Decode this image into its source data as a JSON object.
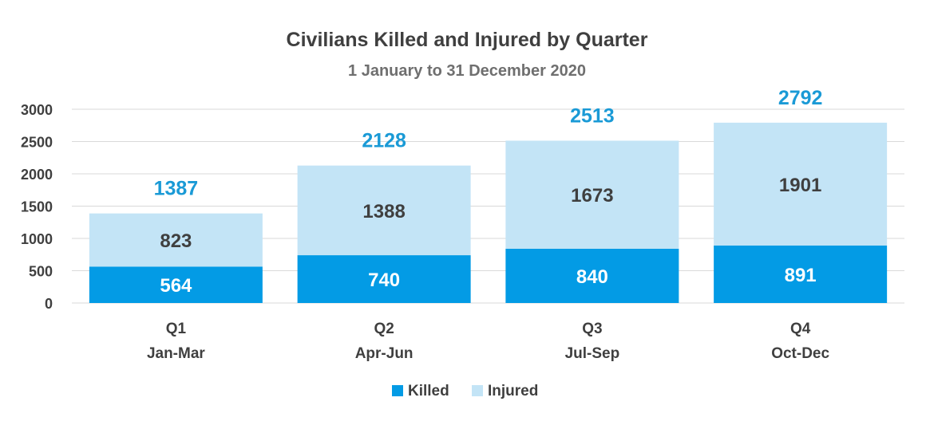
{
  "chart_data": {
    "type": "bar",
    "stacked": true,
    "title": "Civilians Killed and Injured by Quarter",
    "subtitle": "1 January to 31 December 2020",
    "categories": [
      {
        "quarter": "Q1",
        "months": "Jan-Mar"
      },
      {
        "quarter": "Q2",
        "months": "Apr-Jun"
      },
      {
        "quarter": "Q3",
        "months": "Jul-Sep"
      },
      {
        "quarter": "Q4",
        "months": "Oct-Dec"
      }
    ],
    "series": [
      {
        "name": "Killed",
        "color": "#039be5",
        "values": [
          564,
          740,
          840,
          891
        ]
      },
      {
        "name": "Injured",
        "color": "#c3e4f6",
        "values": [
          823,
          1388,
          1673,
          1901
        ]
      }
    ],
    "totals": [
      1387,
      2128,
      2513,
      2792
    ],
    "ylim": [
      0,
      3000
    ],
    "yticks": [
      0,
      500,
      1000,
      1500,
      2000,
      2500,
      3000
    ],
    "grid": true,
    "legend_position": "bottom-center",
    "total_label_color": "#1a9ad6"
  }
}
